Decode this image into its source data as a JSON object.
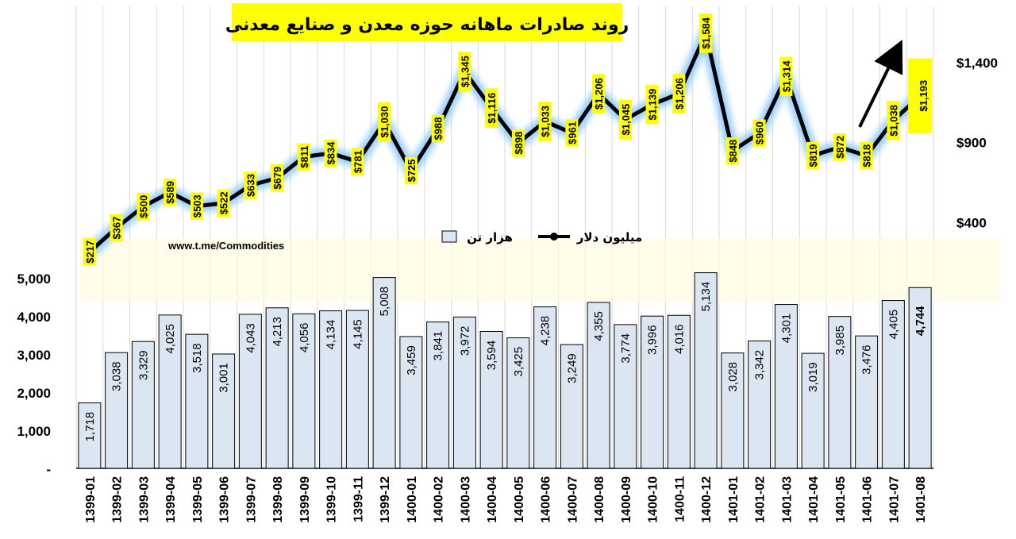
{
  "chart_data": {
    "type": "bar+line",
    "title": "روند صادرات ماهانه حوزه معدن و صنایع معدنی",
    "watermark": "www.t.me/Commodities",
    "categories": [
      "1399-01",
      "1399-02",
      "1399-03",
      "1399-04",
      "1399-05",
      "1399-06",
      "1399-07",
      "1399-08",
      "1399-09",
      "1399-10",
      "1399-11",
      "1399-12",
      "1400-01",
      "1400-02",
      "1400-03",
      "1400-04",
      "1400-05",
      "1400-06",
      "1400-07",
      "1400-08",
      "1400-09",
      "1400-10",
      "1400-11",
      "1400-12",
      "1401-01",
      "1401-02",
      "1401-03",
      "1401-04",
      "1401-05",
      "1401-06",
      "1401-07",
      "1401-08"
    ],
    "series": [
      {
        "name": "هزار تن",
        "kind": "bar",
        "axis": "left",
        "values": [
          1718,
          3038,
          3329,
          4025,
          3518,
          3001,
          4043,
          4213,
          4056,
          4134,
          4145,
          5008,
          3459,
          3841,
          3972,
          3594,
          3425,
          4238,
          3249,
          4355,
          3774,
          3996,
          4016,
          5134,
          3028,
          3342,
          4301,
          3019,
          3985,
          3476,
          4405,
          4744
        ],
        "labels": [
          "1,718",
          "3,038",
          "3,329",
          "4,025",
          "3,518",
          "3,001",
          "4,043",
          "4,213",
          "4,056",
          "4,134",
          "4,145",
          "5,008",
          "3,459",
          "3,841",
          "3,972",
          "3,594",
          "3,425",
          "4,238",
          "3,249",
          "4,355",
          "3,774",
          "3,996",
          "4,016",
          "5,134",
          "3,028",
          "3,342",
          "4,301",
          "3,019",
          "3,985",
          "3,476",
          "4,405",
          "4,744"
        ]
      },
      {
        "name": "میلیون دلار",
        "kind": "line",
        "axis": "right",
        "values": [
          217,
          367,
          500,
          589,
          503,
          522,
          633,
          679,
          811,
          834,
          781,
          1030,
          725,
          988,
          1345,
          1116,
          898,
          1033,
          961,
          1206,
          1045,
          1139,
          1206,
          1584,
          848,
          960,
          1314,
          819,
          872,
          818,
          1038,
          1193
        ],
        "labels": [
          "$217",
          "$367",
          "$500",
          "$589",
          "$503",
          "$522",
          "$633",
          "$679",
          "$811",
          "$834",
          "$781",
          "$1,030",
          "$725",
          "$988",
          "$1,345",
          "$1,116",
          "$898",
          "$1,033",
          "$961",
          "$1,206",
          "$1,045",
          "$1,139",
          "$1,206",
          "$1,584",
          "$848",
          "$960",
          "$1,314",
          "$819",
          "$872",
          "$818",
          "$1,038",
          "$1,193"
        ]
      }
    ],
    "left_axis": {
      "ticks": [
        0,
        1000,
        2000,
        3000,
        4000,
        5000
      ],
      "tick_labels": [
        "-",
        "1,000",
        "2,000",
        "3,000",
        "4,000",
        "5,000"
      ],
      "range": [
        0,
        5000
      ]
    },
    "right_axis": {
      "ticks": [
        400,
        900,
        1400
      ],
      "tick_labels": [
        "$400",
        "$900",
        "$1,400"
      ],
      "range": [
        0,
        1850
      ]
    },
    "legend_placement": "center",
    "grid": "vertical",
    "colors": {
      "bar_fill": "#dce6f2",
      "bar_stroke": "#000000",
      "line": "#000000",
      "line_glow": "#8ec9ff",
      "label_bg": "#ffff00",
      "title_bg": "#ffff00",
      "grid": "#d9d9d9"
    }
  }
}
